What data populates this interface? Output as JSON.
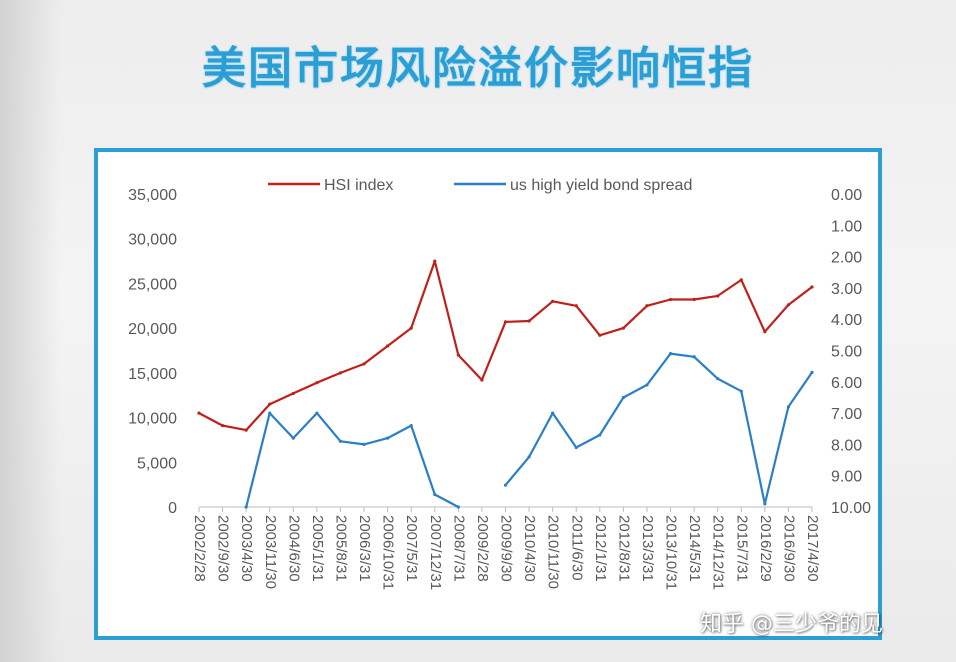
{
  "slide": {
    "title": "美国市场风险溢价影响恒指",
    "watermark": "知乎 @三少爷的见"
  },
  "chart_data": {
    "type": "line",
    "title": "",
    "legend_position": "top",
    "grid": false,
    "x": [
      "2002/2/28",
      "2002/9/30",
      "2003/4/30",
      "2003/11/30",
      "2004/6/30",
      "2005/1/31",
      "2005/8/31",
      "2006/3/31",
      "2006/10/31",
      "2007/5/31",
      "2007/12/31",
      "2008/7/31",
      "2009/2/28",
      "2009/9/30",
      "2010/4/30",
      "2010/11/30",
      "2011/6/30",
      "2012/1/31",
      "2012/8/31",
      "2013/3/31",
      "2013/10/31",
      "2014/5/31",
      "2014/12/31",
      "2015/7/31",
      "2016/2/29",
      "2016/9/30",
      "2017/4/30"
    ],
    "y_axis_left": {
      "min": 0,
      "max": 35000,
      "ticks": [
        "35,000",
        "30,000",
        "25,000",
        "20,000",
        "15,000",
        "10,000",
        "5,000",
        "0"
      ]
    },
    "y_axis_right": {
      "min": 0,
      "max": 10,
      "inverted": true,
      "ticks": [
        "0.00",
        "1.00",
        "2.00",
        "3.00",
        "4.00",
        "5.00",
        "6.00",
        "7.00",
        "8.00",
        "9.00",
        "10.00"
      ]
    },
    "series": [
      {
        "name": "HSI index",
        "color": "#c0201a",
        "axis": "left",
        "values": [
          10500,
          9100,
          8600,
          11500,
          12700,
          13900,
          15000,
          16000,
          18000,
          20000,
          27500,
          17000,
          14200,
          20700,
          20800,
          23000,
          22500,
          19200,
          20000,
          22500,
          23200,
          23200,
          23600,
          25400,
          19600,
          22600,
          24600
        ]
      },
      {
        "name": "us high yield bond spread",
        "color": "#2a7fc6",
        "axis": "right",
        "values": [
          null,
          null,
          10.0,
          7.0,
          7.8,
          7.0,
          7.9,
          8.0,
          7.8,
          7.4,
          9.6,
          10.0,
          null,
          9.3,
          8.4,
          7.0,
          8.1,
          7.7,
          6.5,
          6.1,
          5.1,
          5.2,
          5.9,
          6.3,
          9.9,
          6.8,
          5.7
        ]
      }
    ]
  }
}
